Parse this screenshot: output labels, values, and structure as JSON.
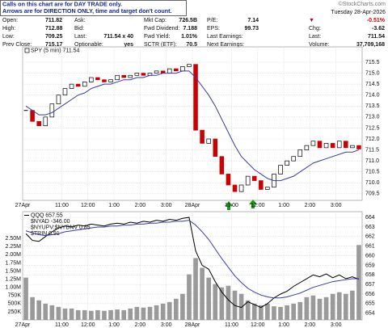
{
  "header": {
    "notice": [
      "Calls on this chart are for DAY TRADE only.",
      "Arrows are for DIRECTION ONLY, time and target don't count."
    ],
    "brand": "©StockCharts.com",
    "date": "Tuesday 28-Apr-2026"
  },
  "quote": {
    "rows": [
      [
        [
          "Open:",
          "711.82"
        ],
        [
          "Ask:"
        ],
        [
          "Mkt Cap:",
          "726.5B"
        ],
        [
          "P/E:",
          "7.14"
        ],
        [
          "▼",
          "-0.51%"
        ]
      ],
      [
        [
          "High:",
          "712.88"
        ],
        [
          "Bid:"
        ],
        [
          "Fwd Dividend:",
          "7.188"
        ],
        [
          "EPS:",
          "99.73"
        ],
        [
          "Chg:",
          "-3.62"
        ]
      ],
      [
        [
          "Low:",
          "709.25"
        ],
        [
          "Last:",
          "711.54 x 40"
        ],
        [
          "Fwd Yield:",
          "1.01%"
        ],
        [
          "Last Earnings:"
        ],
        [
          "Last:",
          "711.54"
        ]
      ],
      [
        [
          "Prev Close:",
          "715.17"
        ],
        [
          "Optionable:",
          "yes"
        ],
        [
          "SCTR (ETF):",
          "70.5"
        ],
        [
          "Next Earnings:"
        ],
        [
          "Volume:",
          "37,709,168"
        ]
      ]
    ]
  },
  "chart_data": [
    {
      "type": "candlestick",
      "up_color": "#000000",
      "down_color": "#cc0000",
      "grid": true,
      "xlim": [
        0,
        52
      ],
      "ylim": [
        709.2,
        716.2
      ],
      "yticks": [
        {
          "value": 715.5,
          "label": "715.5"
        },
        {
          "value": 715,
          "label": "715.0"
        },
        {
          "value": 714.5,
          "label": "714.5"
        },
        {
          "value": 714,
          "label": "714.0"
        },
        {
          "value": 713.5,
          "label": "713.5"
        },
        {
          "value": 713,
          "label": "713.0"
        },
        {
          "value": 712.5,
          "label": "712.5"
        },
        {
          "value": 712,
          "label": "712.0"
        },
        {
          "value": 711.5,
          "label": "711.5"
        },
        {
          "value": 711,
          "label": "711.0"
        },
        {
          "value": 710.5,
          "label": "710.5"
        },
        {
          "value": 710,
          "label": "710.0"
        },
        {
          "value": 709.5,
          "label": "709.5"
        }
      ],
      "xticks": [
        {
          "value": 0,
          "label": "27Apr"
        },
        {
          "value": 6,
          "label": "11:00"
        },
        {
          "value": 10,
          "label": "12:00"
        },
        {
          "value": 14,
          "label": "1:00"
        },
        {
          "value": 18,
          "label": "2:00"
        },
        {
          "value": 22,
          "label": "3:00"
        },
        {
          "value": 26,
          "label": "28Apr"
        },
        {
          "value": 32,
          "label": "11:00"
        },
        {
          "value": 36,
          "label": "12:00"
        },
        {
          "value": 40,
          "label": "1:00"
        },
        {
          "value": 44,
          "label": "2:00"
        },
        {
          "value": 48,
          "label": "3:00"
        }
      ],
      "series": [
        {
          "name": "SPY (5 min) 711.54",
          "values": [
            713.3,
            712.8,
            712.6,
            713.0,
            713.6,
            714.0,
            714.3,
            714.5,
            714.4,
            714.6,
            714.8,
            714.7,
            714.6,
            714.7,
            714.9,
            714.8,
            714.9,
            715.0,
            714.9,
            715.0,
            715.1,
            715.0,
            715.2,
            715.1,
            715.3,
            715.4,
            712.4,
            711.8,
            712.0,
            711.2,
            710.4,
            709.9,
            709.6,
            709.9,
            710.3,
            710.1,
            709.7,
            709.8,
            710.4,
            710.8,
            711.0,
            711.2,
            711.5,
            711.7,
            711.9,
            711.6,
            711.8,
            711.6,
            711.9,
            711.6,
            711.7,
            711.54
          ]
        },
        {
          "color": "#3a3aa8",
          "values": [
            713.5,
            713.3,
            713.1,
            713.1,
            713.2,
            713.4,
            713.6,
            713.8,
            714.0,
            714.1,
            714.3,
            714.4,
            714.5,
            714.5,
            714.6,
            714.7,
            714.7,
            714.8,
            714.8,
            714.9,
            714.9,
            715.0,
            715.0,
            715.0,
            715.1,
            715.1,
            714.8,
            714.4,
            714.0,
            713.5,
            712.9,
            712.3,
            711.7,
            711.2,
            710.9,
            710.6,
            710.4,
            710.2,
            710.1,
            710.1,
            710.2,
            710.3,
            710.5,
            710.7,
            710.9,
            711.0,
            711.1,
            711.2,
            711.3,
            711.4,
            711.4,
            711.5
          ]
        }
      ]
    },
    {
      "type": "volume_line",
      "grid": true,
      "xlim": [
        0,
        52
      ],
      "ylim": [
        0,
        3325000
      ],
      "y2lim": [
        653.3,
        664.6
      ],
      "yticks": [
        {
          "value": 2500000,
          "label": "2.50M"
        },
        {
          "value": 2250000,
          "label": "2.25M"
        },
        {
          "value": 2000000,
          "label": "2.00M"
        },
        {
          "value": 1750000,
          "label": "1.75M"
        },
        {
          "value": 1500000,
          "label": "1.50M"
        },
        {
          "value": 1250000,
          "label": "1.25M"
        },
        {
          "value": 1000000,
          "label": "1.00M"
        },
        {
          "value": 750000,
          "label": "750K"
        },
        {
          "value": 500000,
          "label": "500K"
        },
        {
          "value": 250000,
          "label": "250K"
        }
      ],
      "y2ticks": [
        664,
        663,
        662,
        661,
        660,
        659,
        658,
        657,
        656,
        655,
        654
      ],
      "xticks": [
        {
          "value": 0,
          "label": "27Apr"
        },
        {
          "value": 6,
          "label": "11:00"
        },
        {
          "value": 10,
          "label": "12:00"
        },
        {
          "value": 14,
          "label": "1:00"
        },
        {
          "value": 18,
          "label": "2:00"
        },
        {
          "value": 22,
          "label": "3:00"
        },
        {
          "value": 26,
          "label": "28Apr"
        },
        {
          "value": 32,
          "label": "11:00"
        },
        {
          "value": 36,
          "label": "12:00"
        },
        {
          "value": 40,
          "label": "1:00"
        },
        {
          "value": 44,
          "label": "2:00"
        },
        {
          "value": 48,
          "label": "3:00"
        }
      ],
      "series": [
        {
          "color": "#9a9a9a",
          "values": [
            1300000,
            700000,
            600000,
            500000,
            450000,
            400000,
            350000,
            350000,
            300000,
            300000,
            280000,
            300000,
            280000,
            300000,
            320000,
            300000,
            350000,
            400000,
            380000,
            400000,
            450000,
            500000,
            550000,
            650000,
            800000,
            1400000,
            1900000,
            1600000,
            1300000,
            1100000,
            1000000,
            1050000,
            900000,
            800000,
            600000,
            500000,
            450000,
            500000,
            420000,
            400000,
            450000,
            500000,
            550000,
            700000,
            750000,
            650000,
            700000,
            800000,
            850000,
            800000,
            900000,
            2300000
          ]
        },
        {
          "name": "QQQ 657.55",
          "axis": "y2",
          "color": "#000000",
          "values": [
            662.3,
            661.6,
            661.5,
            662.0,
            662.5,
            662.9,
            663.1,
            663.0,
            663.2,
            663.1,
            663.3,
            663.2,
            663.1,
            663.3,
            663.4,
            663.3,
            663.5,
            663.4,
            663.6,
            663.5,
            663.7,
            663.6,
            663.8,
            663.7,
            663.9,
            664.0,
            660.5,
            659.0,
            658.6,
            657.3,
            656.2,
            655.4,
            654.8,
            654.6,
            655.2,
            654.9,
            654.6,
            655.0,
            655.6,
            656.0,
            656.3,
            656.8,
            657.2,
            657.6,
            658.0,
            657.8,
            658.1,
            657.7,
            658.0,
            657.6,
            657.8,
            657.55
          ]
        },
        {
          "axis": "y2",
          "color": "#3a3aa8",
          "values": [
            662.6,
            662.4,
            662.2,
            662.1,
            662.2,
            662.3,
            662.5,
            662.6,
            662.7,
            662.8,
            662.9,
            663.0,
            663.0,
            663.1,
            663.1,
            663.2,
            663.2,
            663.3,
            663.3,
            663.4,
            663.4,
            663.5,
            663.5,
            663.6,
            663.6,
            663.7,
            663.2,
            662.5,
            661.7,
            660.7,
            659.7,
            658.8,
            657.9,
            657.2,
            656.6,
            656.2,
            655.9,
            655.7,
            655.6,
            655.6,
            655.7,
            655.9,
            656.1,
            656.4,
            656.7,
            656.9,
            657.1,
            657.3,
            657.4,
            657.5,
            657.6,
            657.6
          ]
        }
      ],
      "annotations": [
        "$NYAD -346.00",
        "$NYUPV:$NYDNV 0.85",
        "$TRIN 0.91"
      ]
    }
  ]
}
